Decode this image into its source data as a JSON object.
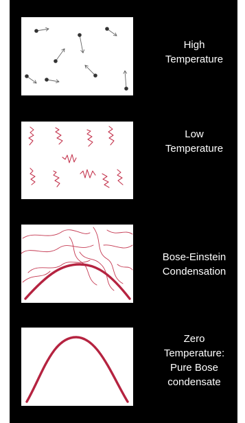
{
  "colors": {
    "background": "#000000",
    "panel": "#ffffff",
    "particle": "#333333",
    "wave": "#c4364f",
    "condensate": "#b52340",
    "label_text": "#ffffff"
  },
  "stages": [
    {
      "id": "high",
      "label_lines": [
        "High",
        "Temperature"
      ]
    },
    {
      "id": "low",
      "label_lines": [
        "Low",
        "Temperature"
      ]
    },
    {
      "id": "bec",
      "label_lines": [
        "Bose-Einstein",
        "Condensation"
      ]
    },
    {
      "id": "zero",
      "label_lines": [
        "Zero",
        "Temperature:",
        "Pure Bose",
        "condensate"
      ]
    }
  ]
}
